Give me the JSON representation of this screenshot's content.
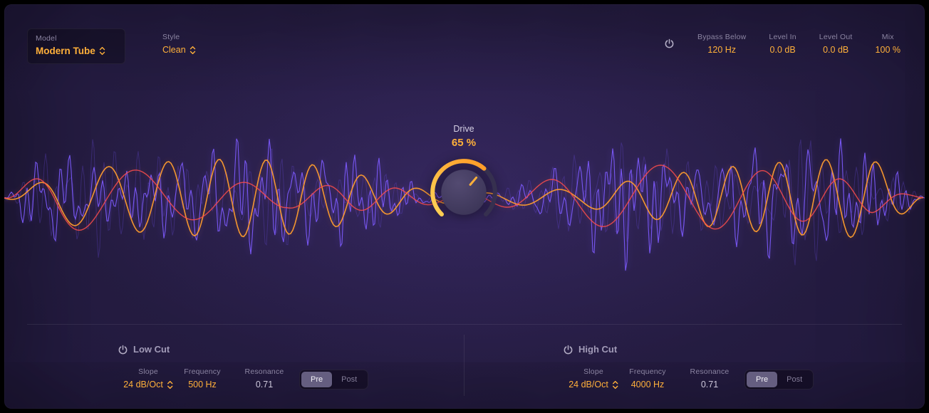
{
  "colors": {
    "accent": "#ffb03a",
    "background": "#221a3e",
    "wave_violet": "#7e5bff",
    "wave_orange": "#ff9d2e",
    "wave_red": "#ff4d4d"
  },
  "header": {
    "model": {
      "label": "Model",
      "value": "Modern Tube"
    },
    "style": {
      "label": "Style",
      "value": "Clean"
    },
    "bypass_below": {
      "label": "Bypass Below",
      "value": "120 Hz"
    },
    "level_in": {
      "label": "Level In",
      "value": "0.0 dB"
    },
    "level_out": {
      "label": "Level Out",
      "value": "0.0 dB"
    },
    "mix": {
      "label": "Mix",
      "value": "100 %"
    }
  },
  "drive": {
    "label": "Drive",
    "value": "65 %",
    "percent": 65
  },
  "low_cut": {
    "title": "Low Cut",
    "slope": {
      "label": "Slope",
      "value": "24 dB/Oct"
    },
    "frequency": {
      "label": "Frequency",
      "value": "500 Hz"
    },
    "resonance": {
      "label": "Resonance",
      "value": "0.71"
    },
    "routing": {
      "pre": "Pre",
      "post": "Post",
      "selected": "Pre"
    }
  },
  "high_cut": {
    "title": "High Cut",
    "slope": {
      "label": "Slope",
      "value": "24 dB/Oct"
    },
    "frequency": {
      "label": "Frequency",
      "value": "4000 Hz"
    },
    "resonance": {
      "label": "Resonance",
      "value": "0.71"
    },
    "routing": {
      "pre": "Pre",
      "post": "Post",
      "selected": "Pre"
    }
  }
}
